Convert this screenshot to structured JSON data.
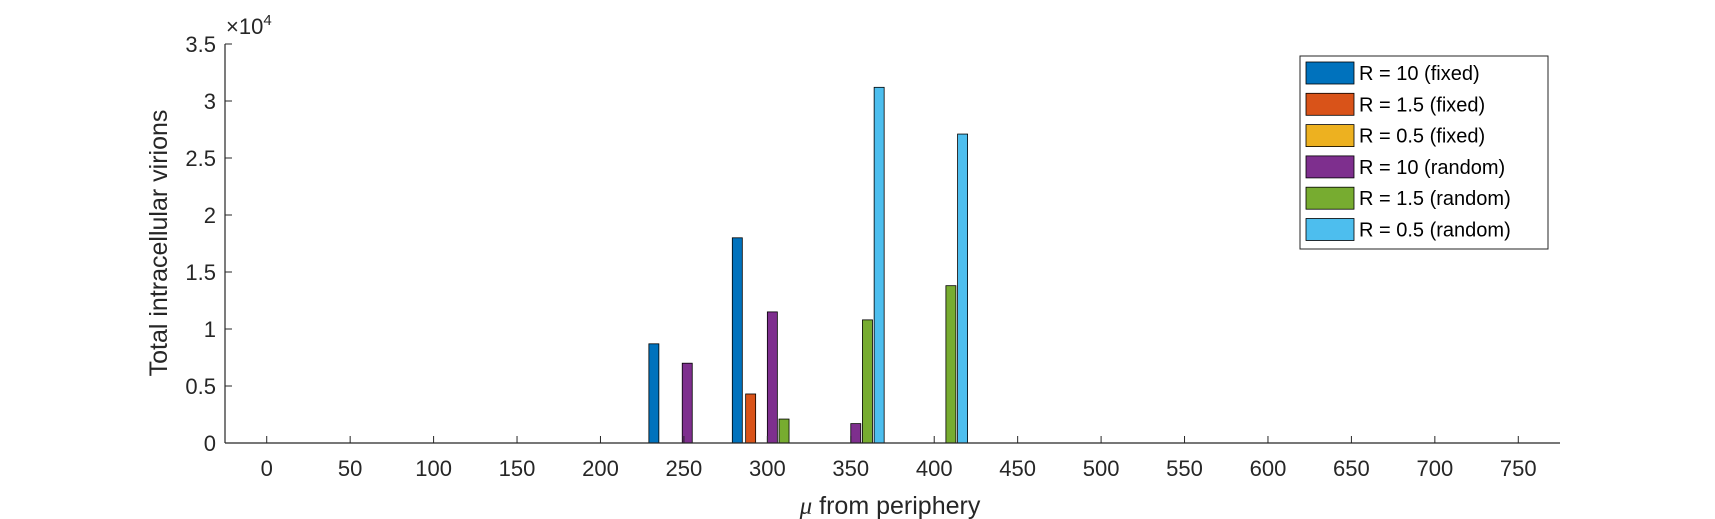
{
  "chart_data": {
    "type": "bar",
    "xlabel_symbol": "μ",
    "xlabel_rest": " from periphery",
    "ylabel": "Total intracellular virions",
    "exponent_prefix": "×10",
    "exponent_power": "4",
    "xlim": [
      -25,
      775
    ],
    "ylim": [
      0,
      35000
    ],
    "x_ticks": [
      0,
      50,
      100,
      150,
      200,
      250,
      300,
      350,
      400,
      450,
      500,
      550,
      600,
      650,
      700,
      750
    ],
    "y_ticks": [
      {
        "value": 0,
        "label": "0"
      },
      {
        "value": 5000,
        "label": "0.5"
      },
      {
        "value": 10000,
        "label": "1"
      },
      {
        "value": 15000,
        "label": "1.5"
      },
      {
        "value": 20000,
        "label": "2"
      },
      {
        "value": 25000,
        "label": "2.5"
      },
      {
        "value": 30000,
        "label": "3"
      },
      {
        "value": 35000,
        "label": "3.5"
      }
    ],
    "grid": false,
    "legend_position": "top-right",
    "series": [
      {
        "name": "R = 10 (fixed)",
        "color": "#0072BD",
        "points": [
          [
            232,
            8700
          ],
          [
            282,
            18000
          ]
        ]
      },
      {
        "name": "R = 1.5 (fixed)",
        "color": "#D95319",
        "points": [
          [
            290,
            4300
          ]
        ]
      },
      {
        "name": "R = 0.5 (fixed)",
        "color": "#EDB120",
        "points": []
      },
      {
        "name": "R = 10 (random)",
        "color": "#7E2F8E",
        "points": [
          [
            252,
            7000
          ],
          [
            303,
            11500
          ],
          [
            353,
            1700
          ]
        ]
      },
      {
        "name": "R = 1.5 (random)",
        "color": "#77AC30",
        "points": [
          [
            310,
            2100
          ],
          [
            360,
            10800
          ],
          [
            410,
            13800
          ]
        ]
      },
      {
        "name": "R = 0.5 (random)",
        "color": "#4DBEEE",
        "points": [
          [
            367,
            31200
          ],
          [
            417,
            27100
          ]
        ]
      }
    ]
  }
}
